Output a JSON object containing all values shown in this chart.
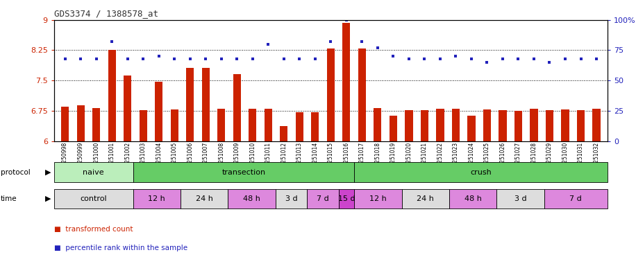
{
  "title": "GDS3374 / 1388578_at",
  "samples": [
    "GSM250998",
    "GSM250999",
    "GSM251000",
    "GSM251001",
    "GSM251002",
    "GSM251003",
    "GSM251004",
    "GSM251005",
    "GSM251006",
    "GSM251007",
    "GSM251008",
    "GSM251009",
    "GSM251010",
    "GSM251011",
    "GSM251012",
    "GSM251013",
    "GSM251014",
    "GSM251015",
    "GSM251016",
    "GSM251017",
    "GSM251018",
    "GSM251019",
    "GSM251020",
    "GSM251021",
    "GSM251022",
    "GSM251023",
    "GSM251024",
    "GSM251025",
    "GSM251026",
    "GSM251027",
    "GSM251028",
    "GSM251029",
    "GSM251030",
    "GSM251031",
    "GSM251032"
  ],
  "bar_values": [
    6.85,
    6.88,
    6.82,
    8.25,
    7.63,
    6.77,
    7.47,
    6.78,
    7.82,
    7.82,
    6.8,
    7.65,
    6.8,
    6.8,
    6.37,
    6.72,
    6.72,
    8.3,
    8.93,
    8.3,
    6.82,
    6.62,
    6.77,
    6.77,
    6.8,
    6.8,
    6.62,
    6.78,
    6.77,
    6.75,
    6.8,
    6.77,
    6.78,
    6.77,
    6.8
  ],
  "dot_values": [
    68,
    68,
    68,
    82,
    68,
    68,
    70,
    68,
    68,
    68,
    68,
    68,
    68,
    80,
    68,
    68,
    68,
    82,
    100,
    82,
    77,
    70,
    68,
    68,
    68,
    70,
    68,
    65,
    68,
    68,
    68,
    65,
    68,
    68,
    68
  ],
  "bar_color": "#cc2200",
  "dot_color": "#2222bb",
  "ylim_left": [
    6.0,
    9.0
  ],
  "ylim_right": [
    0,
    100
  ],
  "yticks_left": [
    6.0,
    6.75,
    7.5,
    8.25,
    9.0
  ],
  "yticks_right": [
    0,
    25,
    50,
    75,
    100
  ],
  "ytick_labels_left": [
    "6",
    "6.75",
    "7.5",
    "8.25",
    "9"
  ],
  "ytick_labels_right": [
    "0",
    "25",
    "50",
    "75",
    "100%"
  ],
  "hlines": [
    6.75,
    7.5,
    8.25
  ],
  "protocol_groups": [
    {
      "label": "naive",
      "start": 0,
      "end": 5,
      "color": "#bbeebb"
    },
    {
      "label": "transection",
      "start": 5,
      "end": 19,
      "color": "#66cc66"
    },
    {
      "label": "crush",
      "start": 19,
      "end": 35,
      "color": "#66cc66"
    }
  ],
  "time_groups": [
    {
      "label": "control",
      "start": 0,
      "end": 5,
      "color": "#dddddd"
    },
    {
      "label": "12 h",
      "start": 5,
      "end": 8,
      "color": "#dd88dd"
    },
    {
      "label": "24 h",
      "start": 8,
      "end": 11,
      "color": "#dddddd"
    },
    {
      "label": "48 h",
      "start": 11,
      "end": 14,
      "color": "#dd88dd"
    },
    {
      "label": "3 d",
      "start": 14,
      "end": 16,
      "color": "#dddddd"
    },
    {
      "label": "7 d",
      "start": 16,
      "end": 18,
      "color": "#dd88dd"
    },
    {
      "label": "15 d",
      "start": 18,
      "end": 19,
      "color": "#cc44cc"
    },
    {
      "label": "12 h",
      "start": 19,
      "end": 22,
      "color": "#dd88dd"
    },
    {
      "label": "24 h",
      "start": 22,
      "end": 25,
      "color": "#dddddd"
    },
    {
      "label": "48 h",
      "start": 25,
      "end": 28,
      "color": "#dd88dd"
    },
    {
      "label": "3 d",
      "start": 28,
      "end": 31,
      "color": "#dddddd"
    },
    {
      "label": "7 d",
      "start": 31,
      "end": 35,
      "color": "#dd88dd"
    }
  ],
  "bar_color_left": "#cc2200",
  "dot_color_right": "#2222bb"
}
